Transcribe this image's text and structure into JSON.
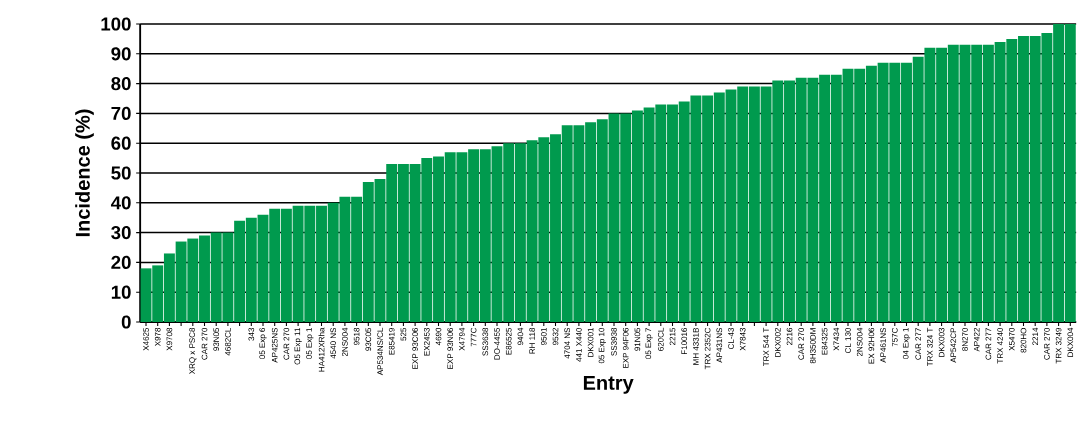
{
  "chart_data": {
    "type": "bar",
    "xlabel": "Entry",
    "ylabel": "Incidence (%)",
    "color": "#009a4e",
    "grid": "y",
    "ylim": [
      0,
      100
    ],
    "yticks": [
      0,
      10,
      20,
      30,
      40,
      50,
      60,
      70,
      80,
      90,
      100
    ],
    "categories": [
      "X4625",
      "X978",
      "X9708",
      null,
      "XRQ x PSC8",
      "CAR 270",
      "93N05",
      "4682CL",
      null,
      "343",
      "05 Exp 6",
      "AP425NS",
      "CAR 270",
      "O5 Exp 11",
      "05 Exp 1",
      "HA412XRha",
      "4540 NS",
      "2NS004",
      "9518",
      "93C05",
      "AP534NS/CL",
      "E85419",
      "525",
      "EXP 93C06",
      "EX2453",
      "4690",
      "EXP 93N06",
      "X4794",
      "777C",
      "SS3638",
      "DO-4455",
      "E86525",
      "9404",
      "RH 118",
      "9501",
      "9532",
      "4704 NS",
      "441 X440",
      "DKX001",
      "05 Exp 10",
      "SS3938",
      "EXP 94F06",
      "91N05",
      "05 Exp 7",
      "620CL",
      "2215",
      "F10016",
      "MH 4331B",
      "TRX 2352C",
      "AP431NS",
      "CL-43",
      "X7843",
      null,
      "TRX 544 T",
      "DKX002",
      "2216",
      "CAR 270",
      "8H350DM",
      "E84325",
      "X7434",
      "CL 130",
      "2NS004",
      "EX 92H06",
      "AP461NS",
      "757C",
      "04 Exp 1",
      "CAR 277",
      "TRX 324 T",
      "DKX003",
      "AP542CP",
      "8N270",
      "AP422",
      "CAR 277",
      "TRX 4240",
      "X5470",
      "820HO",
      "2214",
      "CAR 270",
      "TRX 3249",
      "DKX004"
    ],
    "values": [
      18,
      19,
      23,
      27,
      28,
      29,
      30,
      30,
      34,
      35,
      36,
      38,
      38,
      39,
      39,
      39,
      40,
      42,
      42,
      47,
      48,
      53,
      53,
      53,
      55,
      55.5,
      57,
      57,
      58,
      58,
      59,
      60,
      60,
      61,
      62,
      63,
      66,
      66,
      67,
      68,
      70,
      70,
      71,
      72,
      73,
      73,
      74,
      76,
      76,
      77,
      78,
      79,
      79,
      79,
      81,
      81,
      82,
      82,
      83,
      83,
      85,
      85,
      86,
      87,
      87,
      87,
      89,
      92,
      92,
      93,
      93,
      93,
      93,
      94,
      95,
      96,
      96,
      97,
      100,
      100
    ]
  }
}
